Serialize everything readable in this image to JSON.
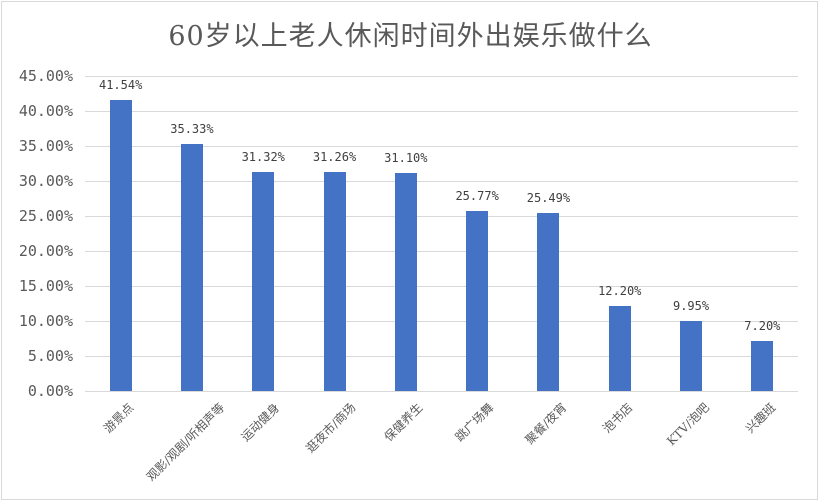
{
  "chart_data": {
    "type": "bar",
    "title": "60岁以上老人休闲时间外出娱乐做什么",
    "xlabel": "",
    "ylabel": "",
    "categories": [
      "游景点",
      "观影/观剧/听相声等",
      "运动健身",
      "逛夜市/商场",
      "保健养生",
      "跳广场舞",
      "聚餐/夜宵",
      "泡书店",
      "KTV/泡吧",
      "兴趣班"
    ],
    "values": [
      41.54,
      35.33,
      31.32,
      31.26,
      31.1,
      25.77,
      25.49,
      12.2,
      9.95,
      7.2
    ],
    "value_labels": [
      "41.54%",
      "35.33%",
      "31.32%",
      "31.26%",
      "31.10%",
      "25.77%",
      "25.49%",
      "12.20%",
      "9.95%",
      "7.20%"
    ],
    "ylim": [
      0,
      45
    ],
    "yticks": [
      0,
      5,
      10,
      15,
      20,
      25,
      30,
      35,
      40,
      45
    ],
    "ytick_labels": [
      "0.00%",
      "5.00%",
      "10.00%",
      "15.00%",
      "20.00%",
      "25.00%",
      "30.00%",
      "35.00%",
      "40.00%",
      "45.00%"
    ],
    "grid": true,
    "legend": "none",
    "bar_color": "#4472c4"
  }
}
